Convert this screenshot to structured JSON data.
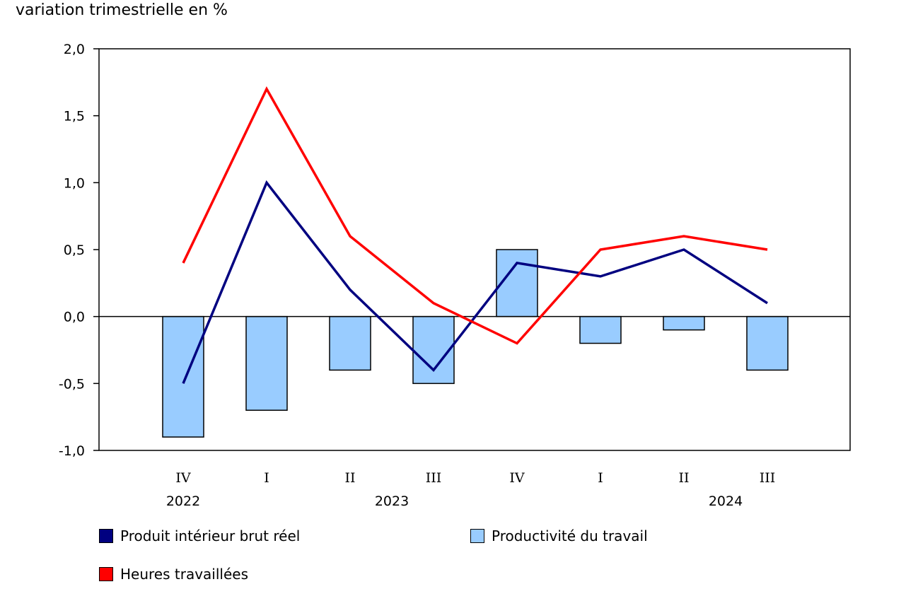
{
  "chart_data": {
    "type": "bar+line",
    "title": "variation trimestrielle en %",
    "categories": [
      "IV",
      "I",
      "II",
      "III",
      "IV",
      "I",
      "II",
      "III"
    ],
    "year_labels": [
      {
        "label": "2022",
        "index": 0
      },
      {
        "label": "2023",
        "index": 2.5
      },
      {
        "label": "2024",
        "index": 6.5
      }
    ],
    "ylim": [
      -1.0,
      2.0
    ],
    "yticks": [
      -1.0,
      -0.5,
      0.0,
      0.5,
      1.0,
      1.5,
      2.0
    ],
    "ytick_labels": [
      "-1,0",
      "-0,5",
      "0,0",
      "0,5",
      "1,0",
      "1,5",
      "2,0"
    ],
    "series": [
      {
        "name": "Productivité du travail",
        "kind": "bar",
        "color": "#99ccff",
        "values": [
          -0.9,
          -0.7,
          -0.4,
          -0.5,
          0.5,
          -0.2,
          -0.1,
          -0.4
        ]
      },
      {
        "name": "Produit intérieur brut réel",
        "kind": "line",
        "color": "#000080",
        "values": [
          -0.5,
          1.0,
          0.2,
          -0.4,
          0.4,
          0.3,
          0.5,
          0.1
        ]
      },
      {
        "name": "Heures travaillées",
        "kind": "line",
        "color": "#ff0000",
        "values": [
          0.4,
          1.7,
          0.6,
          0.1,
          -0.2,
          0.5,
          0.6,
          0.5
        ]
      }
    ]
  },
  "legend": [
    {
      "label": "Produit intérieur brut réel",
      "color": "#000080"
    },
    {
      "label": "Productivité du travail",
      "color": "#99ccff"
    },
    {
      "label": "Heures travaillées",
      "color": "#ff0000"
    }
  ]
}
